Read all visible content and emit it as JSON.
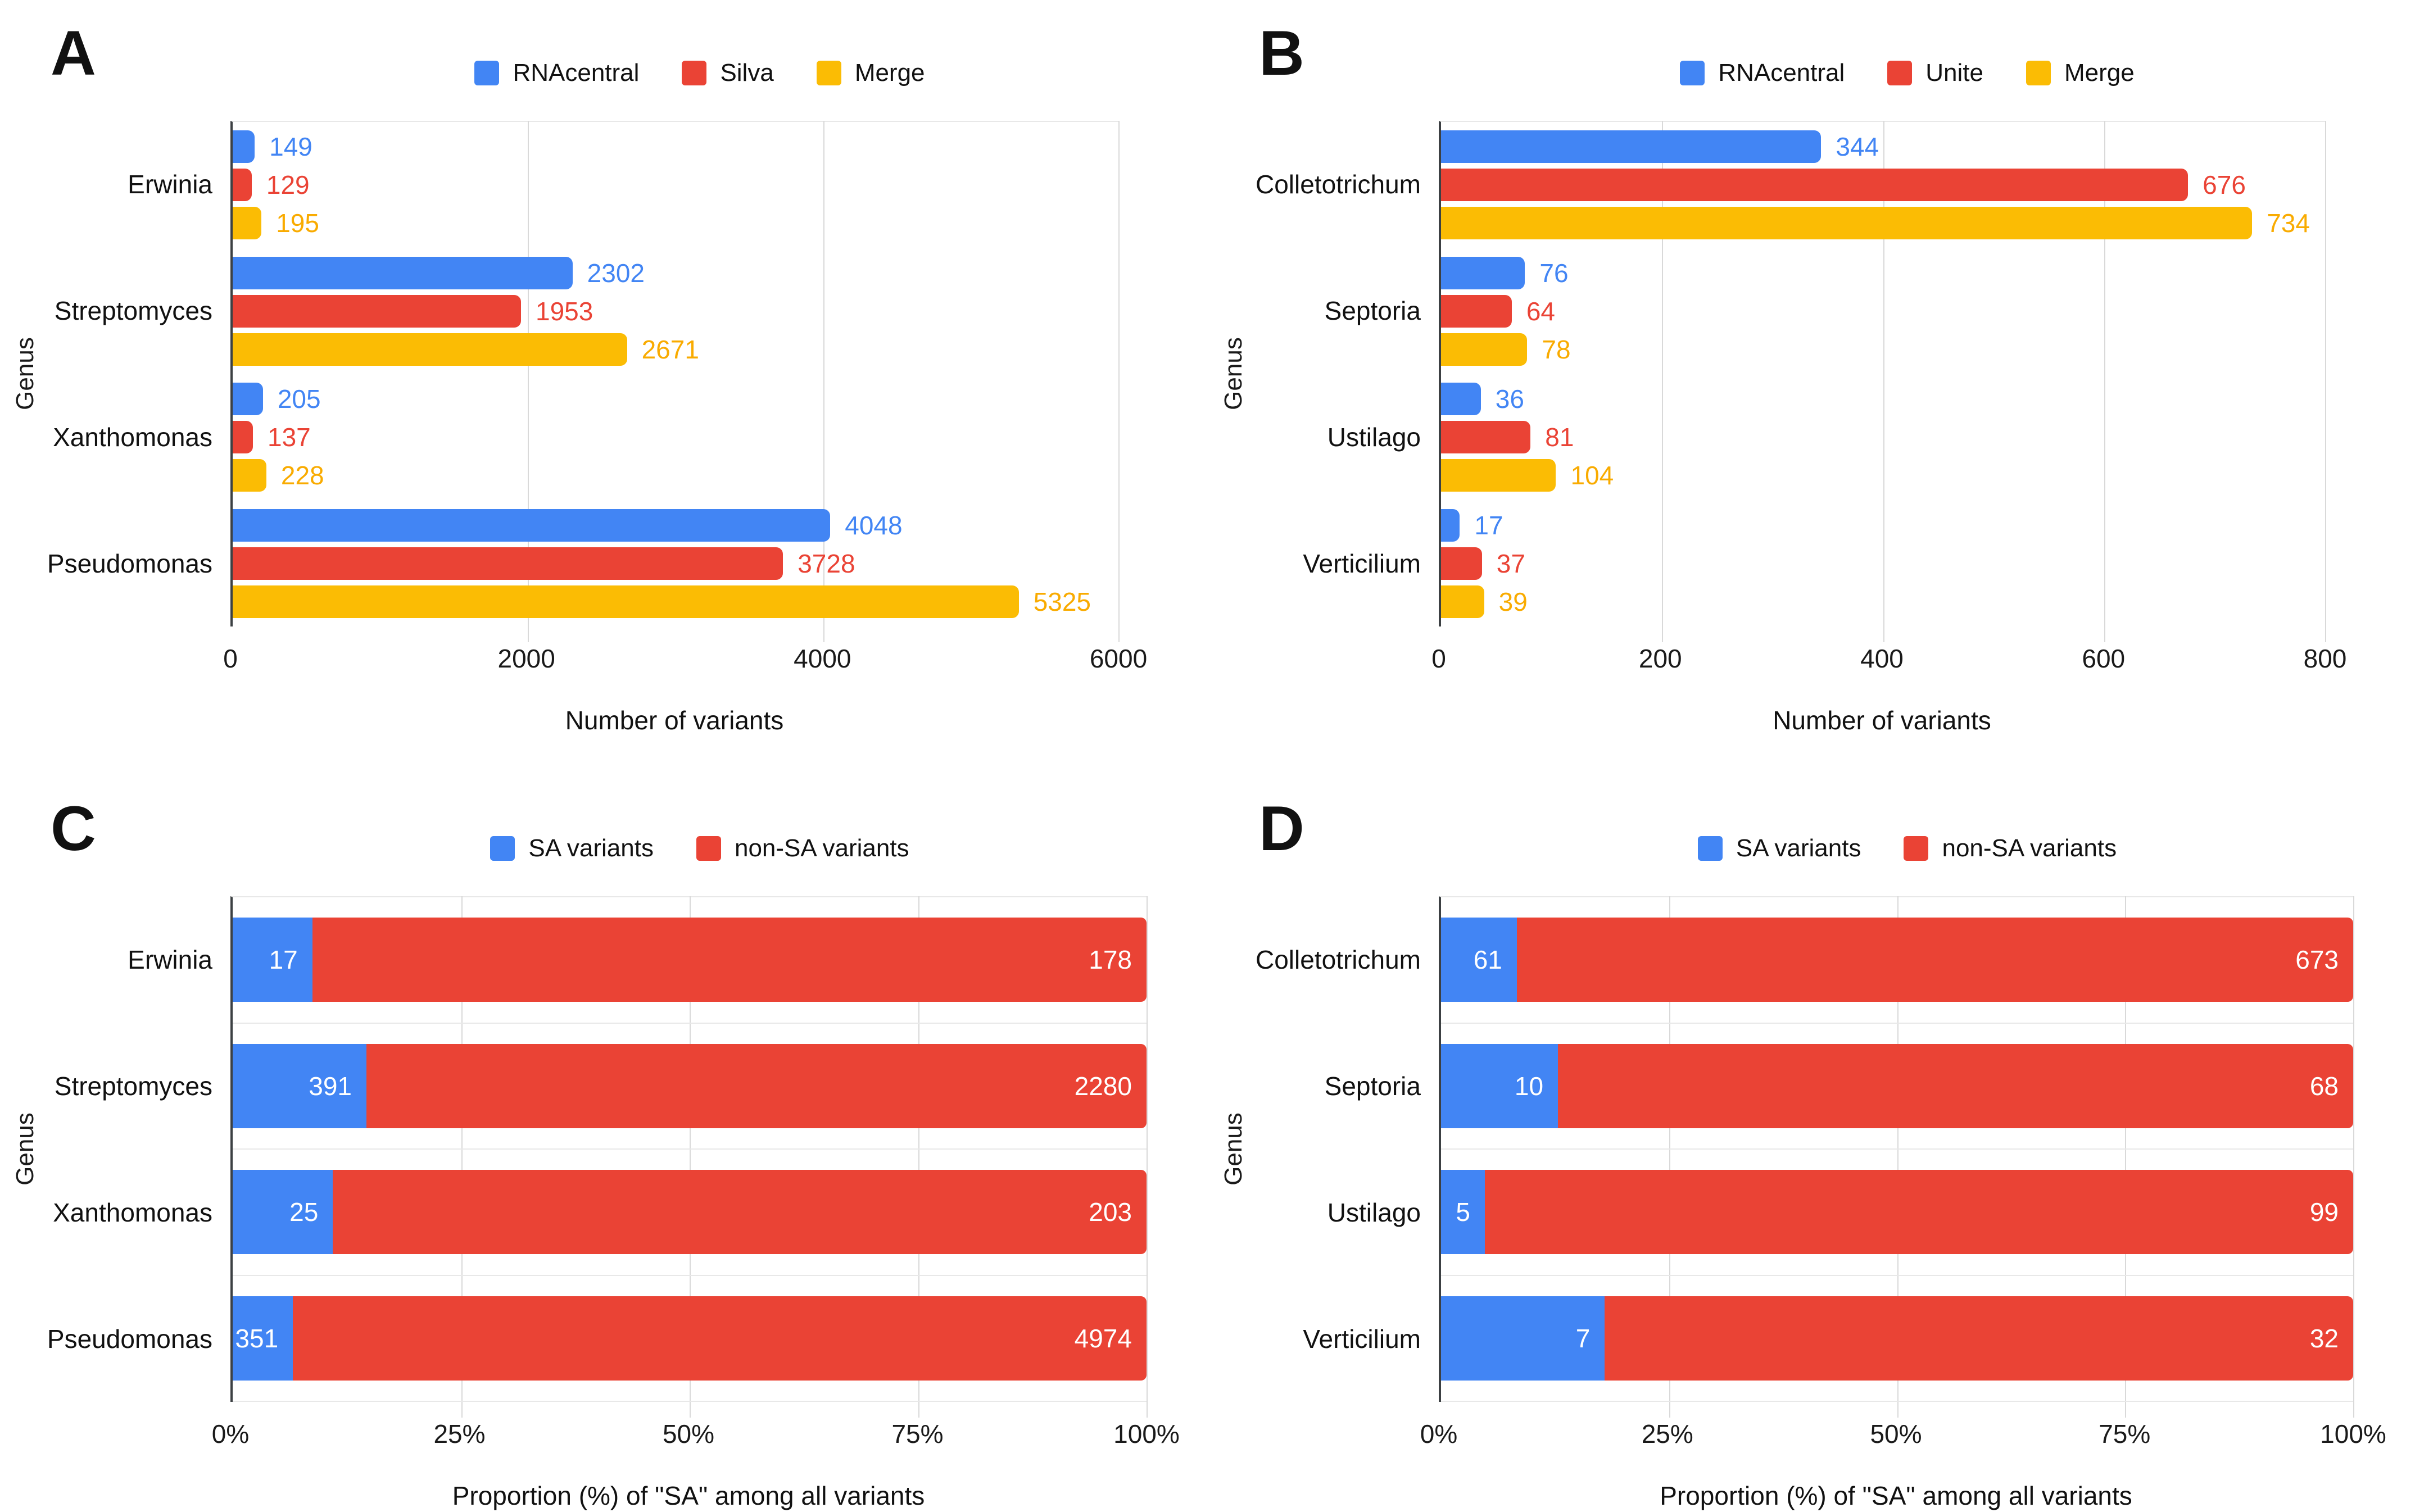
{
  "colors": {
    "blue": "#4285F4",
    "red": "#EA4335",
    "yellow": "#FBBC04",
    "yellow_label": "#F9AB00",
    "grid": "#d9d9d9",
    "axis": "#3c4043",
    "text": "#111111"
  },
  "chart_data": [
    {
      "panel": "A",
      "type": "bar",
      "orientation": "horizontal",
      "grouped": true,
      "stacked": false,
      "legend_position": "top",
      "xlabel": "Number of variants",
      "ylabel": "Genus",
      "xlim": [
        0,
        6000
      ],
      "xticks": [
        0,
        2000,
        4000,
        6000
      ],
      "grid": "vertical",
      "categories": [
        "Erwinia",
        "Streptomyces",
        "Xanthomonas",
        "Pseudomonas"
      ],
      "series": [
        {
          "name": "RNAcentral",
          "color": "#4285F4",
          "label_color": "#4285F4",
          "values": [
            149,
            2302,
            205,
            4048
          ]
        },
        {
          "name": "Silva",
          "color": "#EA4335",
          "label_color": "#EA4335",
          "values": [
            129,
            1953,
            137,
            3728
          ]
        },
        {
          "name": "Merge",
          "color": "#FBBC04",
          "label_color": "#F9AB00",
          "values": [
            195,
            2671,
            228,
            5325
          ]
        }
      ]
    },
    {
      "panel": "B",
      "type": "bar",
      "orientation": "horizontal",
      "grouped": true,
      "stacked": false,
      "legend_position": "top",
      "xlabel": "Number of variants",
      "ylabel": "Genus",
      "xlim": [
        0,
        800
      ],
      "xticks": [
        0,
        200,
        400,
        600,
        800
      ],
      "grid": "vertical",
      "categories": [
        "Colletotrichum",
        "Septoria",
        "Ustilago",
        "Verticilium"
      ],
      "series": [
        {
          "name": "RNAcentral",
          "color": "#4285F4",
          "label_color": "#4285F4",
          "values": [
            344,
            76,
            36,
            17
          ]
        },
        {
          "name": "Unite",
          "color": "#EA4335",
          "label_color": "#EA4335",
          "values": [
            676,
            64,
            81,
            37
          ]
        },
        {
          "name": "Merge",
          "color": "#FBBC04",
          "label_color": "#F9AB00",
          "values": [
            734,
            78,
            104,
            39
          ]
        }
      ]
    },
    {
      "panel": "C",
      "type": "bar",
      "orientation": "horizontal",
      "grouped": false,
      "stacked": true,
      "normalized": true,
      "legend_position": "top",
      "xlabel": "Proportion (%) of \"SA\" among all variants",
      "ylabel": "Genus",
      "xlim": [
        0,
        100
      ],
      "xticks": [
        "0%",
        "25%",
        "50%",
        "75%",
        "100%"
      ],
      "grid": "vertical",
      "categories": [
        "Erwinia",
        "Streptomyces",
        "Xanthomonas",
        "Pseudomonas"
      ],
      "series": [
        {
          "name": "SA variants",
          "color": "#4285F4",
          "values": [
            17,
            391,
            25,
            351
          ]
        },
        {
          "name": "non-SA variants",
          "color": "#EA4335",
          "values": [
            178,
            2280,
            203,
            4974
          ]
        }
      ]
    },
    {
      "panel": "D",
      "type": "bar",
      "orientation": "horizontal",
      "grouped": false,
      "stacked": true,
      "normalized": true,
      "legend_position": "top",
      "xlabel": "Proportion (%) of \"SA\" among all variants",
      "ylabel": "Genus",
      "xlim": [
        0,
        100
      ],
      "xticks": [
        "0%",
        "25%",
        "50%",
        "75%",
        "100%"
      ],
      "grid": "vertical",
      "categories": [
        "Colletotrichum",
        "Septoria",
        "Ustilago",
        "Verticilium"
      ],
      "series": [
        {
          "name": "SA variants",
          "color": "#4285F4",
          "values": [
            61,
            10,
            5,
            7
          ]
        },
        {
          "name": "non-SA variants",
          "color": "#EA4335",
          "values": [
            673,
            68,
            99,
            32
          ]
        }
      ]
    }
  ]
}
